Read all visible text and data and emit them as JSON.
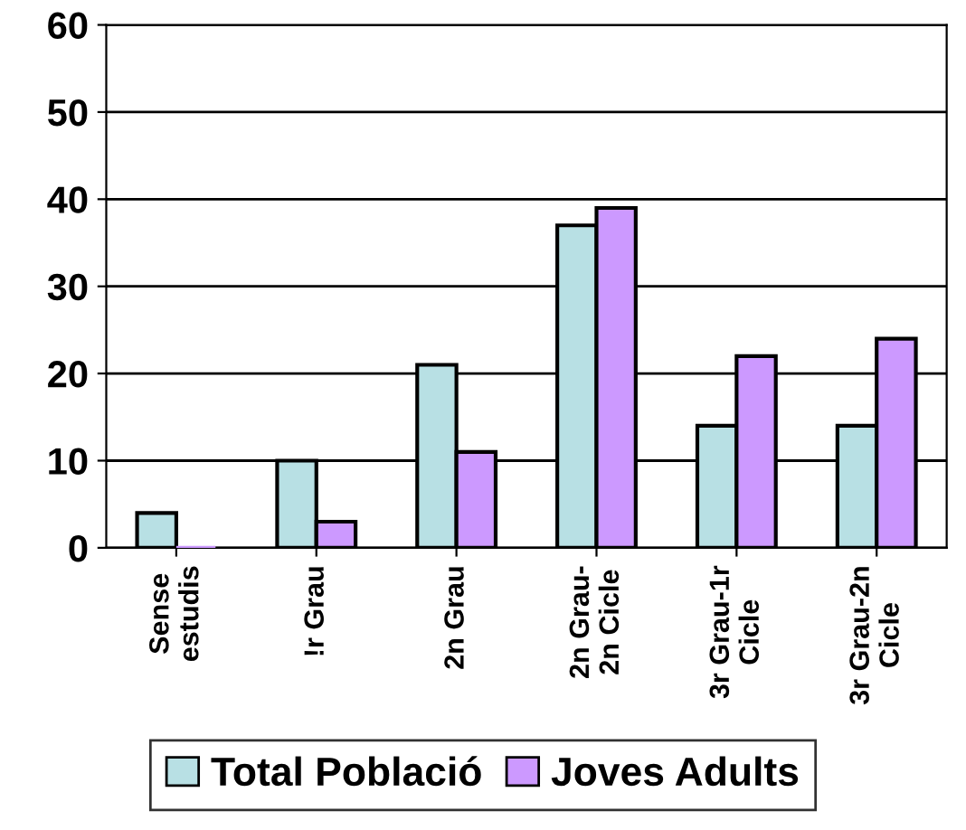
{
  "chart_data": {
    "type": "bar",
    "categories": [
      "Sense\nestudis",
      "!r Grau",
      "2n Grau",
      "2n Grau-\n2n Cicle",
      "3r Grau-1r\nCicle",
      "3r Grau-2n\nCicle"
    ],
    "series": [
      {
        "name": "Total Població",
        "color": "#b8e0e4",
        "values": [
          4,
          10,
          21,
          37,
          14,
          14
        ]
      },
      {
        "name": "Joves Adults",
        "color": "#cc99ff",
        "values": [
          0,
          3,
          11,
          39,
          22,
          24
        ]
      }
    ],
    "ylim": [
      0,
      60
    ],
    "yticks": [
      0,
      10,
      20,
      30,
      40,
      50,
      60
    ],
    "grid": "y",
    "legend": "bottom"
  }
}
